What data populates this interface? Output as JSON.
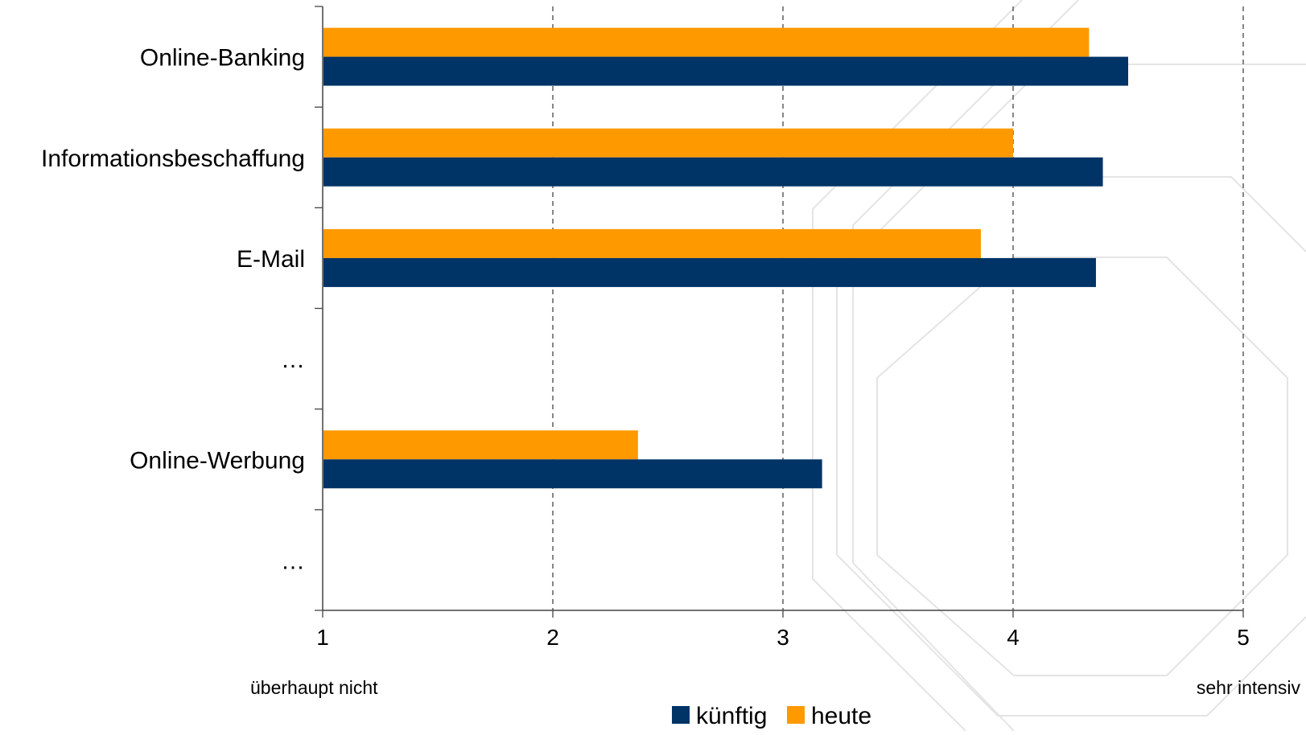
{
  "chart_data": {
    "type": "bar",
    "orientation": "horizontal",
    "categories": [
      "Online-Banking",
      "Informationsbeschaffung",
      "E-Mail",
      "…",
      "Online-Werbung",
      "…"
    ],
    "series": [
      {
        "name": "heute",
        "color": "#FF9900",
        "values": [
          4.33,
          4.0,
          3.86,
          null,
          2.37,
          null
        ]
      },
      {
        "name": "künftig",
        "color": "#003366",
        "values": [
          4.5,
          4.39,
          4.36,
          null,
          3.17,
          null
        ]
      }
    ],
    "xlim": [
      1,
      5
    ],
    "x_ticks": [
      "1",
      "2",
      "3",
      "4",
      "5"
    ],
    "x_end_labels": {
      "left": "überhaupt nicht",
      "right": "sehr intensiv"
    },
    "grid": "vertical dashed",
    "legend": {
      "position": "bottom",
      "entries": [
        "künftig",
        "heute"
      ]
    }
  }
}
